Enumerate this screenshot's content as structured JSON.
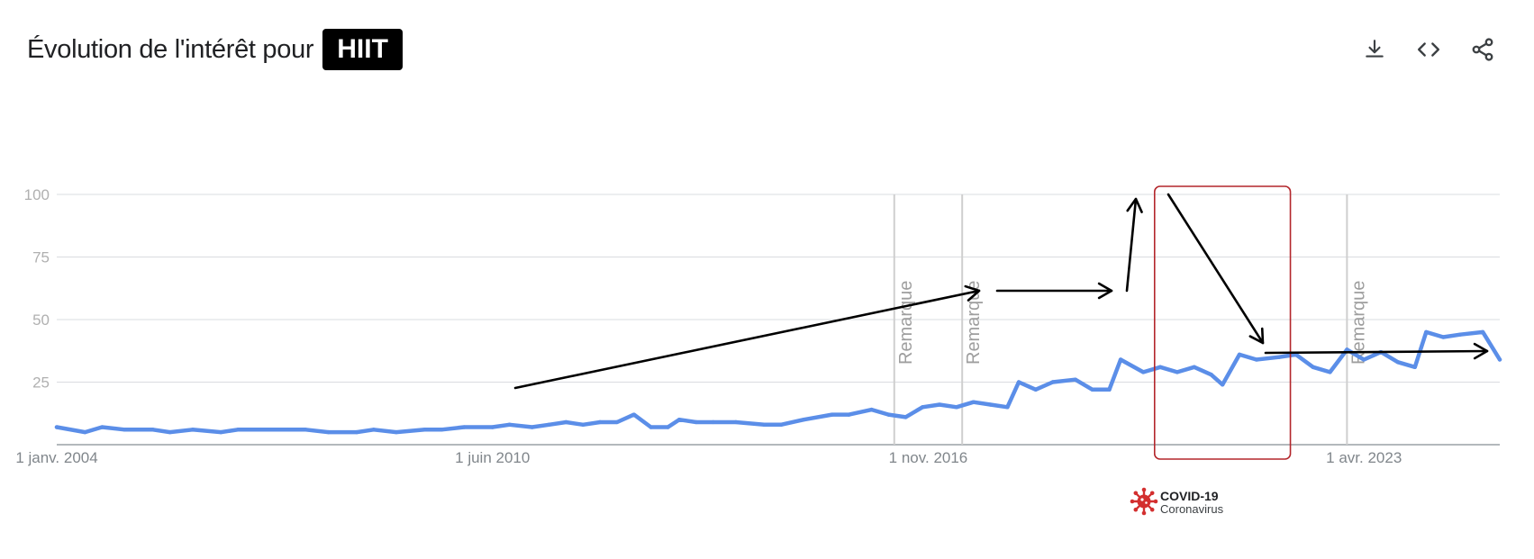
{
  "header": {
    "title": "Évolution de l'intérêt pour",
    "term": "HIIT"
  },
  "actions": [
    {
      "name": "download",
      "icon": "download-icon"
    },
    {
      "name": "embed",
      "icon": "code-icon"
    },
    {
      "name": "share",
      "icon": "share-icon"
    }
  ],
  "colors": {
    "line": "#5b8ee8",
    "grid": "#dadce0",
    "highlight_box": "#b3262b",
    "note_line": "#cfcfcf",
    "covid_icon": "#d32f2f",
    "annotation": "#000000"
  },
  "chart_data": {
    "type": "line",
    "title": "",
    "xlabel": "",
    "ylabel": "",
    "ylim": [
      0,
      100
    ],
    "xlim": [
      "2004-01",
      "2025-04"
    ],
    "yticks": [
      "25",
      "50",
      "75",
      "100"
    ],
    "ytick_values": [
      25,
      50,
      75,
      100
    ],
    "xticks": [
      "1 janv. 2004",
      "1 juin 2010",
      "1 nov. 2016",
      "1 avr. 2023"
    ],
    "xtick_dates": [
      "2004-01",
      "2010-06",
      "2016-11",
      "2023-04"
    ],
    "grid": true,
    "series": [
      {
        "points": [
          [
            "2004-01",
            7
          ],
          [
            "2004-06",
            5
          ],
          [
            "2004-09",
            7
          ],
          [
            "2005-01",
            6
          ],
          [
            "2005-06",
            6
          ],
          [
            "2005-09",
            5
          ],
          [
            "2006-01",
            6
          ],
          [
            "2006-06",
            5
          ],
          [
            "2006-09",
            6
          ],
          [
            "2007-01",
            6
          ],
          [
            "2007-06",
            6
          ],
          [
            "2007-09",
            6
          ],
          [
            "2008-01",
            5
          ],
          [
            "2008-06",
            5
          ],
          [
            "2008-09",
            6
          ],
          [
            "2009-01",
            5
          ],
          [
            "2009-06",
            6
          ],
          [
            "2009-09",
            6
          ],
          [
            "2010-01",
            7
          ],
          [
            "2010-06",
            7
          ],
          [
            "2010-09",
            8
          ],
          [
            "2011-01",
            7
          ],
          [
            "2011-04",
            8
          ],
          [
            "2011-07",
            9
          ],
          [
            "2011-10",
            8
          ],
          [
            "2012-01",
            9
          ],
          [
            "2012-04",
            9
          ],
          [
            "2012-07",
            12
          ],
          [
            "2012-10",
            7
          ],
          [
            "2013-01",
            7
          ],
          [
            "2013-03",
            10
          ],
          [
            "2013-06",
            9
          ],
          [
            "2013-09",
            9
          ],
          [
            "2014-01",
            9
          ],
          [
            "2014-06",
            8
          ],
          [
            "2014-09",
            8
          ],
          [
            "2015-01",
            10
          ],
          [
            "2015-06",
            12
          ],
          [
            "2015-09",
            12
          ],
          [
            "2016-01",
            14
          ],
          [
            "2016-04",
            12
          ],
          [
            "2016-07",
            11
          ],
          [
            "2016-10",
            15
          ],
          [
            "2017-01",
            16
          ],
          [
            "2017-04",
            15
          ],
          [
            "2017-07",
            17
          ],
          [
            "2017-10",
            16
          ],
          [
            "2018-01",
            15
          ],
          [
            "2018-03",
            25
          ],
          [
            "2018-06",
            22
          ],
          [
            "2018-09",
            25
          ],
          [
            "2019-01",
            26
          ],
          [
            "2019-04",
            22
          ],
          [
            "2019-07",
            22
          ],
          [
            "2019-09",
            34
          ],
          [
            "2020-01",
            29
          ],
          [
            "2020-04",
            31
          ],
          [
            "2020-07",
            29
          ],
          [
            "2020-10",
            31
          ],
          [
            "2021-01",
            28
          ],
          [
            "2021-03",
            24
          ],
          [
            "2021-06",
            36
          ],
          [
            "2021-09",
            34
          ],
          [
            "2022-01",
            35
          ],
          [
            "2022-04",
            36
          ],
          [
            "2022-07",
            31
          ],
          [
            "2022-10",
            29
          ],
          [
            "2023-01",
            38
          ],
          [
            "2023-04",
            34
          ],
          [
            "2023-07",
            37
          ],
          [
            "2023-10",
            33
          ],
          [
            "2024-01",
            31
          ],
          [
            "2024-03",
            45
          ],
          [
            "2024-06",
            43
          ],
          [
            "2024-09",
            44
          ],
          [
            "2025-01",
            45
          ],
          [
            "2025-04",
            34
          ]
        ]
      }
    ],
    "notes": [
      {
        "label": "Remarque",
        "date": "2016-05"
      },
      {
        "label": "Remarque",
        "date": "2017-05"
      },
      {
        "label": "Remarque",
        "date": "2023-01"
      }
    ],
    "highlight": {
      "from": "2020-03",
      "to": "2022-03"
    },
    "event_marker": {
      "title": "COVID-19",
      "subtitle": "Coronavirus"
    }
  }
}
